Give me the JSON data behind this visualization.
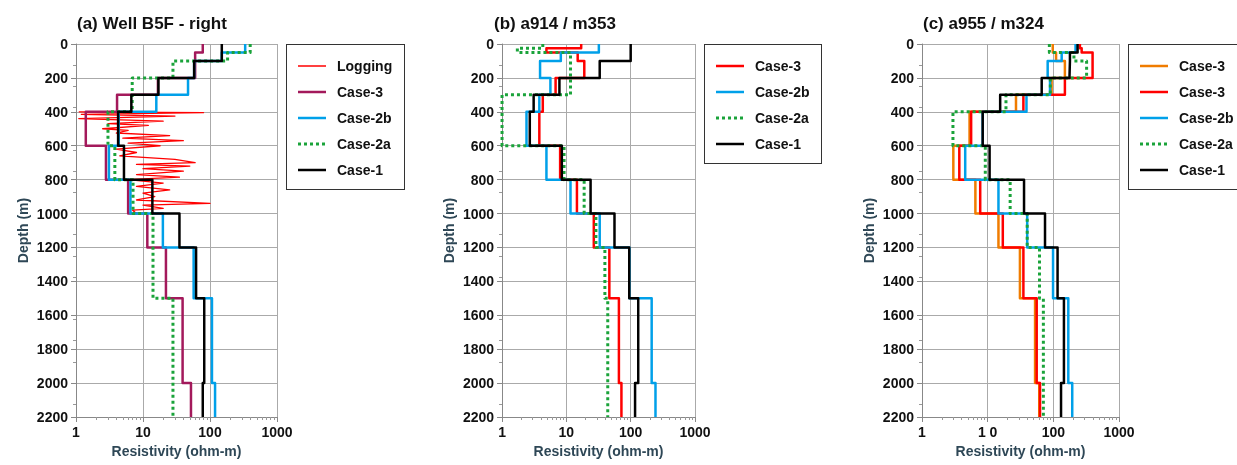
{
  "chart_data": [
    {
      "type": "line",
      "title": "(a) Well B5F - right",
      "xlabel": "Resistivity (ohm-m)",
      "ylabel": "Depth (m)",
      "xlim": [
        1,
        1000
      ],
      "xticks": [
        1,
        10,
        100,
        1000
      ],
      "ylim": [
        2200,
        0
      ],
      "yticks": [
        0,
        200,
        400,
        600,
        800,
        1000,
        1200,
        1400,
        1600,
        1800,
        2000,
        2200
      ],
      "log": "x",
      "grid": true,
      "legend": "right",
      "marker": "none",
      "series": [
        {
          "name": "Logging",
          "color": "#ff0000",
          "line_style": "solid",
          "x": [
            1.1,
            80,
            1.2,
            30,
            1.1,
            20,
            3,
            12,
            2.5,
            6,
            4,
            25,
            5,
            40,
            6,
            18,
            4,
            8,
            4.5,
            30,
            60,
            8,
            50,
            10,
            40,
            8,
            35,
            6,
            20,
            8,
            25,
            10,
            15,
            8,
            100,
            10,
            20,
            7,
            8
          ],
          "values": [
            400,
            405,
            415,
            425,
            440,
            455,
            470,
            480,
            500,
            510,
            525,
            540,
            555,
            570,
            585,
            600,
            620,
            640,
            660,
            680,
            700,
            710,
            720,
            735,
            750,
            770,
            785,
            800,
            820,
            840,
            860,
            880,
            900,
            920,
            940,
            950,
            970,
            980,
            1000
          ]
        },
        {
          "name": "Case-3",
          "color": "#a3195b",
          "line_style": "solid",
          "x": [
            78,
            78,
            78,
            78,
            60,
            60,
            60,
            60,
            16.7,
            16.7,
            4.1,
            4.1,
            1.4,
            1.4,
            2.8,
            2.8,
            6,
            6,
            11.6,
            11.6,
            22,
            22,
            39,
            39,
            52,
            52
          ],
          "values": [
            0,
            25,
            25,
            50,
            50,
            100,
            100,
            200,
            200,
            300,
            300,
            400,
            400,
            600,
            600,
            800,
            800,
            1000,
            1000,
            1200,
            1200,
            1500,
            1500,
            2000,
            2000,
            2200
          ]
        },
        {
          "name": "Case-2b",
          "color": "#00a0e9",
          "line_style": "solid",
          "x": [
            335,
            335,
            335,
            335,
            150,
            150,
            58,
            58,
            47,
            47,
            15.8,
            15.8,
            4.35,
            4.35,
            3.1,
            3.1,
            6.5,
            6.5,
            19.8,
            19.8,
            57,
            57,
            107,
            107,
            119,
            119
          ],
          "values": [
            0,
            25,
            25,
            50,
            50,
            100,
            100,
            200,
            200,
            300,
            300,
            400,
            400,
            600,
            600,
            800,
            800,
            1000,
            1000,
            1200,
            1200,
            1500,
            1500,
            2000,
            2000,
            2200
          ]
        },
        {
          "name": "Case-2a",
          "color": "#1aa33a",
          "line_style": "dotted",
          "x": [
            398,
            398,
            398,
            398,
            183,
            183,
            28,
            28,
            6.9,
            6.9,
            6.9,
            6.9,
            3,
            3,
            3.8,
            3.8,
            7.1,
            7.1,
            14.1,
            14.1,
            14.1,
            14.1,
            28,
            28,
            28,
            28
          ],
          "values": [
            0,
            25,
            25,
            50,
            50,
            100,
            100,
            200,
            200,
            300,
            300,
            400,
            400,
            600,
            600,
            800,
            800,
            1000,
            1000,
            1200,
            1200,
            1500,
            1500,
            2000,
            2000,
            2200
          ]
        },
        {
          "name": "Case-1",
          "color": "#000000",
          "line_style": "solid",
          "x": [
            150,
            150,
            150,
            150,
            150,
            150,
            58,
            58,
            17,
            17,
            6.7,
            6.7,
            4.25,
            4.25,
            5.2,
            5.2,
            13.8,
            13.8,
            35,
            35,
            62,
            62,
            82,
            82,
            78,
            78
          ],
          "values": [
            0,
            25,
            25,
            50,
            50,
            100,
            100,
            200,
            200,
            300,
            300,
            400,
            400,
            600,
            600,
            800,
            800,
            1000,
            1000,
            1200,
            1200,
            1500,
            1500,
            2000,
            2000,
            2200
          ]
        }
      ]
    },
    {
      "type": "line",
      "title": "(b) a914 / m353",
      "xlabel": "Resistivity (ohm-m)",
      "ylabel": "Depth (m)",
      "xlim": [
        1,
        1000
      ],
      "xticks": [
        1,
        10,
        100,
        1000
      ],
      "ylim": [
        2200,
        0
      ],
      "yticks": [
        0,
        200,
        400,
        600,
        800,
        1000,
        1200,
        1400,
        1600,
        1800,
        2000,
        2200
      ],
      "log": "x",
      "grid": true,
      "legend": "right",
      "marker": "none",
      "series": [
        {
          "name": "Case-3",
          "color": "#ff0000",
          "line_style": "solid",
          "x": [
            17,
            17,
            4.9,
            4.9,
            15,
            15,
            19,
            19,
            6.8,
            6.8,
            4.3,
            4.3,
            3.8,
            3.8,
            8,
            8,
            14.6,
            14.6,
            26.7,
            26.7,
            46.6,
            46.6,
            65.6,
            65.6,
            71.8,
            71.8
          ],
          "values": [
            0,
            25,
            25,
            50,
            50,
            100,
            100,
            200,
            200,
            300,
            300,
            400,
            400,
            600,
            600,
            800,
            800,
            1000,
            1000,
            1200,
            1200,
            1500,
            1500,
            2000,
            2000,
            2200
          ]
        },
        {
          "name": "Case-2b",
          "color": "#00a0e9",
          "line_style": "solid",
          "x": [
            32,
            32,
            32,
            32,
            8.2,
            8.2,
            3.9,
            3.9,
            5.65,
            5.65,
            3.8,
            3.8,
            2.4,
            2.4,
            4.9,
            4.9,
            11.6,
            11.6,
            33,
            33,
            95.5,
            95.5,
            212,
            212,
            243,
            243
          ],
          "values": [
            0,
            25,
            25,
            50,
            50,
            100,
            100,
            200,
            200,
            300,
            300,
            400,
            400,
            600,
            600,
            800,
            800,
            1000,
            1000,
            1200,
            1200,
            1500,
            1500,
            2000,
            2000,
            2200
          ]
        },
        {
          "name": "Case-2a",
          "color": "#1aa33a",
          "line_style": "dotted",
          "x": [
            4.3,
            4.3,
            1.73,
            1.73,
            11.6,
            11.6,
            11.6,
            11.6,
            11.6,
            11.6,
            1,
            1,
            1,
            1,
            9.2,
            9.2,
            18.9,
            18.9,
            28.8,
            28.8,
            39.7,
            39.7,
            44,
            44,
            44,
            44
          ],
          "values": [
            0,
            25,
            25,
            50,
            50,
            100,
            100,
            200,
            200,
            300,
            300,
            400,
            400,
            600,
            600,
            800,
            800,
            1000,
            1000,
            1200,
            1200,
            1500,
            1500,
            2000,
            2000,
            2200
          ]
        },
        {
          "name": "Case-1",
          "color": "#000000",
          "line_style": "solid",
          "x": [
            100,
            100,
            100,
            100,
            100,
            100,
            33,
            33,
            7.8,
            7.8,
            3.1,
            3.1,
            2.7,
            2.7,
            8.5,
            8.5,
            23.8,
            23.8,
            56,
            56,
            95,
            95,
            131,
            131,
            117,
            117
          ],
          "values": [
            0,
            25,
            25,
            50,
            50,
            100,
            100,
            200,
            200,
            300,
            300,
            400,
            400,
            600,
            600,
            800,
            800,
            1000,
            1000,
            1200,
            1200,
            1500,
            1500,
            2000,
            2000,
            2200
          ]
        }
      ]
    },
    {
      "type": "line",
      "title": "(c) a955 / m324",
      "xlabel": "Resistivity (ohm-m)",
      "ylabel": "Depth (m)",
      "xlim": [
        1,
        1000
      ],
      "xticks": [
        1,
        {
          "value": 10,
          "label": "1 0"
        },
        100,
        1000
      ],
      "ylim": [
        2200,
        0
      ],
      "yticks": [
        0,
        200,
        400,
        600,
        800,
        1000,
        1200,
        1400,
        1600,
        1800,
        2000,
        2200
      ],
      "log": "x",
      "grid": true,
      "legend": "right",
      "marker": "none",
      "series": [
        {
          "name": "Case-3",
          "color": "#f07c00",
          "line_style": "solid",
          "x": [
            98,
            98,
            98,
            98,
            110,
            110,
            150,
            150,
            94,
            94,
            27,
            27,
            5.3,
            5.3,
            3,
            3,
            6.5,
            6.5,
            14.6,
            14.6,
            31,
            31,
            52.7,
            52.7,
            61,
            61
          ],
          "values": [
            0,
            25,
            25,
            50,
            50,
            100,
            100,
            200,
            200,
            300,
            300,
            400,
            400,
            600,
            600,
            800,
            800,
            1000,
            1000,
            1200,
            1200,
            1500,
            1500,
            2000,
            2000,
            2200
          ]
        },
        {
          "name": "Case-3",
          "color": "#ff0000",
          "line_style": "solid",
          "x": [
            254,
            254,
            270,
            270,
            396,
            396,
            396,
            396,
            150,
            150,
            35,
            35,
            5.6,
            5.6,
            3.7,
            3.7,
            7.7,
            7.7,
            17,
            17,
            35,
            35,
            55.8,
            55.8,
            62.7,
            62.7
          ],
          "values": [
            0,
            25,
            25,
            50,
            50,
            100,
            100,
            200,
            200,
            300,
            300,
            400,
            400,
            600,
            600,
            800,
            800,
            1000,
            1000,
            1200,
            1200,
            1500,
            1500,
            2000,
            2000,
            2200
          ]
        },
        {
          "name": "Case-2b",
          "color": "#00a0e9",
          "line_style": "solid",
          "x": [
            218,
            218,
            218,
            218,
            134,
            134,
            82,
            82,
            89,
            89,
            39,
            39,
            8.4,
            8.4,
            4.55,
            4.55,
            14.6,
            14.6,
            40,
            40,
            99,
            99,
            169,
            169,
            194,
            194
          ],
          "values": [
            0,
            25,
            25,
            50,
            50,
            100,
            100,
            200,
            200,
            300,
            300,
            400,
            400,
            600,
            600,
            800,
            800,
            1000,
            1000,
            1200,
            1200,
            1500,
            1500,
            2000,
            2000,
            2200
          ]
        },
        {
          "name": "Case-2a",
          "color": "#1aa33a",
          "line_style": "dotted",
          "x": [
            87,
            87,
            87,
            87,
            206,
            206,
            321,
            321,
            90,
            90,
            19,
            19,
            2.96,
            2.96,
            9.2,
            9.2,
            22,
            22,
            40,
            40,
            61.6,
            61.6,
            70.5,
            70.5,
            70.5,
            70.5
          ],
          "values": [
            0,
            25,
            25,
            50,
            50,
            100,
            100,
            200,
            200,
            300,
            300,
            400,
            400,
            600,
            600,
            800,
            800,
            1000,
            1000,
            1200,
            1200,
            1500,
            1500,
            2000,
            2000,
            2200
          ]
        },
        {
          "name": "Case-1",
          "color": "#000000",
          "line_style": "solid",
          "x": [
            234,
            234,
            234,
            234,
            179,
            179,
            176,
            176,
            66.5,
            66.5,
            15.5,
            15.5,
            8.4,
            8.4,
            10.7,
            10.7,
            35.8,
            35.8,
            74.7,
            74.7,
            116,
            116,
            145,
            145,
            131,
            131
          ],
          "values": [
            0,
            25,
            25,
            50,
            50,
            100,
            100,
            200,
            200,
            300,
            300,
            400,
            400,
            600,
            600,
            800,
            800,
            1000,
            1000,
            1200,
            1200,
            1500,
            1500,
            2000,
            2000,
            2200
          ]
        }
      ]
    }
  ]
}
